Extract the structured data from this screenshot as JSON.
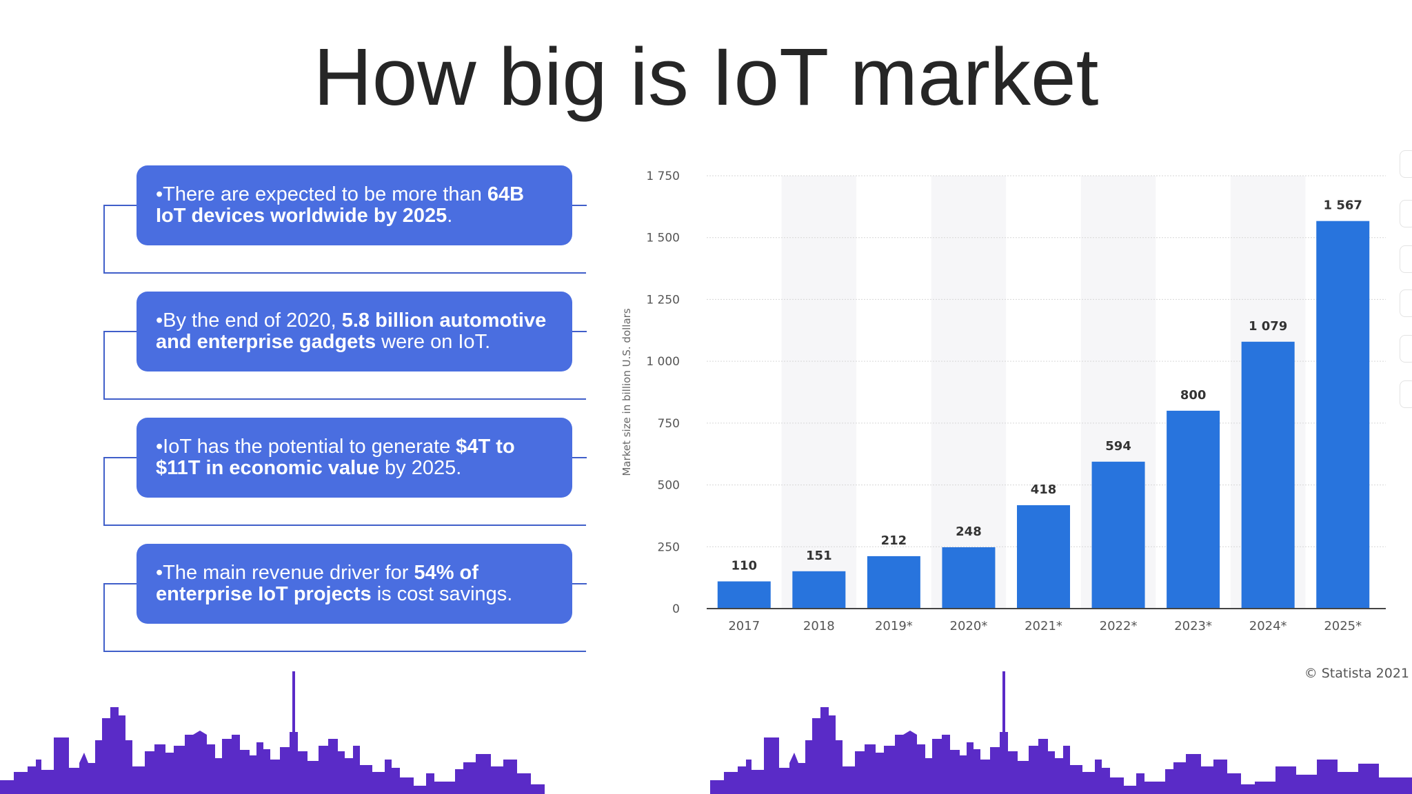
{
  "slide": {
    "title": "How big is IoT market"
  },
  "facts": [
    {
      "parts": [
        {
          "text": "•There are expected to be more than ",
          "bold": false
        },
        {
          "text": "64B IoT devices worldwide by 2025",
          "bold": true
        },
        {
          "text": ".",
          "bold": false
        }
      ]
    },
    {
      "parts": [
        {
          "text": "•By the end of 2020, ",
          "bold": false
        },
        {
          "text": "5.8 billion automotive and enterprise gadgets",
          "bold": true
        },
        {
          "text": " were on IoT.",
          "bold": false
        }
      ]
    },
    {
      "parts": [
        {
          "text": "•IoT has the potential to generate ",
          "bold": false
        },
        {
          "text": "$4T to $11T in economic value",
          "bold": true
        },
        {
          "text": " by 2025.",
          "bold": false
        }
      ]
    },
    {
      "parts": [
        {
          "text": "•The main revenue driver for ",
          "bold": false
        },
        {
          "text": "54% of enterprise IoT projects",
          "bold": true
        },
        {
          "text": " is cost savings.",
          "bold": false
        }
      ]
    }
  ],
  "chart_data": {
    "type": "bar",
    "title": "",
    "xlabel": "",
    "ylabel": "Market size in billion U.S. dollars",
    "categories": [
      "2017",
      "2018",
      "2019*",
      "2020*",
      "2021*",
      "2022*",
      "2023*",
      "2024*",
      "2025*"
    ],
    "values": [
      110,
      151,
      212,
      248,
      418,
      594,
      800,
      1079,
      1567
    ],
    "value_labels": [
      "110",
      "151",
      "212",
      "248",
      "418",
      "594",
      "800",
      "1 079",
      "1 567"
    ],
    "ylim": [
      0,
      1750
    ],
    "yticks": [
      0,
      250,
      500,
      750,
      1000,
      1250,
      1500,
      1750
    ],
    "ytick_labels": [
      "0",
      "250",
      "500",
      "750",
      "1 000",
      "1 250",
      "1 500",
      "1 750"
    ],
    "grid": true,
    "bar_color": "#2874dd",
    "source": "© Statista 2021"
  },
  "colors": {
    "card": "#4a6ee0",
    "bracket": "#3f5ec9",
    "skyline": "#5a2bc7",
    "title": "#262626"
  }
}
